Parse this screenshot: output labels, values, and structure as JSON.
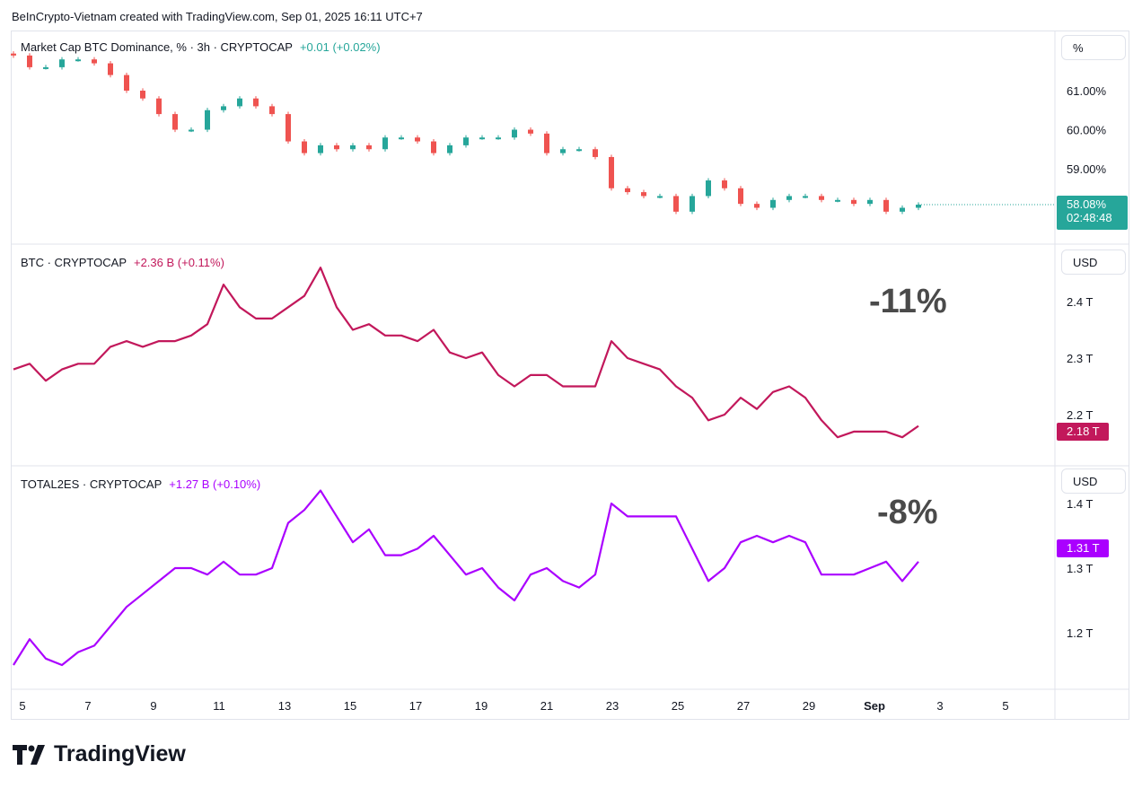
{
  "header": {
    "credit": "BeInCrypto-Vietnam created with TradingView.com, Sep 01, 2025 16:11 UTC+7"
  },
  "footer": {
    "logo_text": "TradingView",
    "logo_icon": "tradingview-logo-icon"
  },
  "panes": [
    {
      "title": "Market Cap BTC Dominance, % · 3h · CRYPTOCAP",
      "change": "+0.01 (+0.02%)",
      "scale_label": "%",
      "price_label": "58.08%",
      "countdown": "02:48:48",
      "ticks": [
        "61.00%",
        "60.00%",
        "59.00%"
      ],
      "annotation": ""
    },
    {
      "title": "BTC · CRYPTOCAP",
      "change": "+2.36 B (+0.11%)",
      "scale_label": "USD",
      "price_label": "2.18 T",
      "ticks": [
        "2.4 T",
        "2.3 T",
        "2.2 T"
      ],
      "annotation": "-11%"
    },
    {
      "title": "TOTAL2ES · CRYPTOCAP",
      "change": "+1.27 B (+0.10%)",
      "scale_label": "USD",
      "price_label": "1.31 T",
      "ticks": [
        "1.4 T",
        "1.3 T",
        "1.2 T"
      ],
      "annotation": "-8%"
    }
  ],
  "colors": {
    "up": "#26a69a",
    "down": "#ef5350",
    "btc": "#c2185b",
    "total2es": "#aa00ff",
    "dominance_label": "#26a69a",
    "grid": "#f0f3fa"
  },
  "chart_data": [
    {
      "type": "candlestick",
      "title": "Market Cap BTC Dominance, % · 3h · CRYPTOCAP",
      "x_start": "2025-08-04 18:00",
      "x_interval": "12h",
      "x_ticks": [
        "5",
        "7",
        "9",
        "11",
        "13",
        "15",
        "17",
        "19",
        "21",
        "23",
        "25",
        "27",
        "29",
        "Sep",
        "3",
        "5"
      ],
      "y_ticks": [
        61,
        60,
        59
      ],
      "ylim": [
        57.5,
        62.5
      ],
      "unit": "%",
      "close": [
        61.9,
        61.6,
        61.6,
        61.8,
        61.8,
        61.7,
        61.4,
        61.0,
        60.8,
        60.4,
        60.0,
        60.0,
        60.5,
        60.6,
        60.8,
        60.6,
        60.4,
        59.7,
        59.4,
        59.6,
        59.5,
        59.6,
        59.5,
        59.8,
        59.8,
        59.7,
        59.4,
        59.6,
        59.8,
        59.8,
        59.8,
        60.0,
        59.9,
        59.4,
        59.5,
        59.5,
        59.3,
        58.5,
        58.4,
        58.3,
        58.3,
        57.9,
        58.3,
        58.7,
        58.5,
        58.1,
        58.0,
        58.2,
        58.3,
        58.3,
        58.2,
        58.2,
        58.1,
        58.2,
        57.9,
        58.0,
        58.08
      ],
      "last": 58.08
    },
    {
      "type": "line",
      "title": "BTC · CRYPTOCAP",
      "x_start": "2025-08-04 18:00",
      "x_interval": "12h",
      "y_ticks": [
        2.4,
        2.3,
        2.2
      ],
      "unit": "T USD",
      "values": [
        2.28,
        2.29,
        2.26,
        2.28,
        2.29,
        2.29,
        2.32,
        2.33,
        2.32,
        2.33,
        2.33,
        2.34,
        2.36,
        2.43,
        2.39,
        2.37,
        2.37,
        2.39,
        2.41,
        2.46,
        2.39,
        2.35,
        2.36,
        2.34,
        2.34,
        2.33,
        2.35,
        2.31,
        2.3,
        2.31,
        2.27,
        2.25,
        2.27,
        2.27,
        2.25,
        2.25,
        2.25,
        2.33,
        2.3,
        2.29,
        2.28,
        2.25,
        2.23,
        2.19,
        2.2,
        2.23,
        2.21,
        2.24,
        2.25,
        2.23,
        2.19,
        2.16,
        2.17,
        2.17,
        2.17,
        2.16,
        2.18
      ],
      "last": 2.18
    },
    {
      "type": "line",
      "title": "TOTAL2ES · CRYPTOCAP",
      "x_start": "2025-08-04 18:00",
      "x_interval": "12h",
      "y_ticks": [
        1.4,
        1.3,
        1.2
      ],
      "unit": "T USD",
      "values": [
        1.15,
        1.19,
        1.16,
        1.15,
        1.17,
        1.18,
        1.21,
        1.24,
        1.26,
        1.28,
        1.3,
        1.3,
        1.29,
        1.31,
        1.29,
        1.29,
        1.3,
        1.37,
        1.39,
        1.42,
        1.38,
        1.34,
        1.36,
        1.32,
        1.32,
        1.33,
        1.35,
        1.32,
        1.29,
        1.3,
        1.27,
        1.25,
        1.29,
        1.3,
        1.28,
        1.27,
        1.29,
        1.4,
        1.38,
        1.38,
        1.38,
        1.38,
        1.33,
        1.28,
        1.3,
        1.34,
        1.35,
        1.34,
        1.35,
        1.34,
        1.29,
        1.29,
        1.29,
        1.3,
        1.31,
        1.28,
        1.31
      ],
      "last": 1.31
    }
  ]
}
